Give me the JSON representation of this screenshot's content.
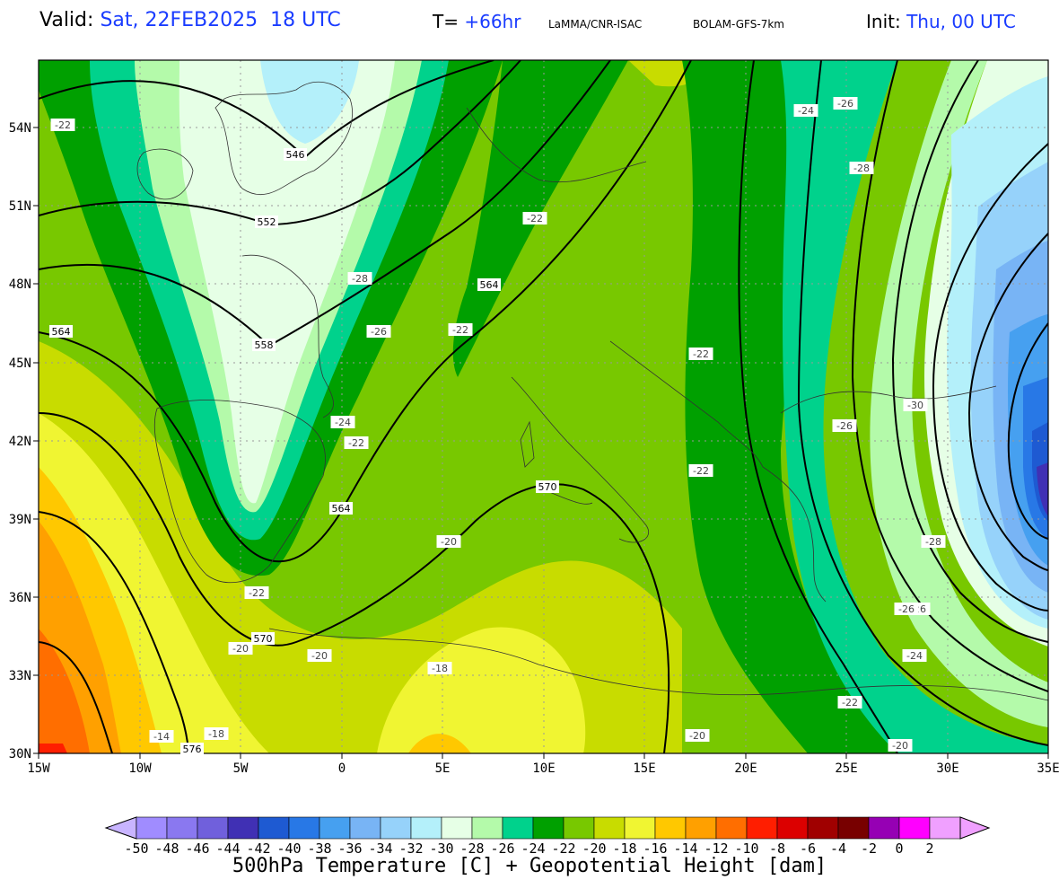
{
  "header": {
    "valid_label": "Valid:",
    "valid_value": "Sat, 22FEB2025  18 UTC",
    "t_label": "T=",
    "t_value": "+66hr",
    "source": "LaMMA/CNR-ISAC",
    "model": "BOLAM-GFS-7km",
    "init_label": "Init:",
    "init_value": "Thu, 00 UTC"
  },
  "map": {
    "lon_ticks": [
      "15W",
      "10W",
      "5W",
      "0",
      "5E",
      "10E",
      "15E",
      "20E",
      "25E",
      "30E",
      "35E"
    ],
    "lat_ticks": [
      "30N",
      "33N",
      "36N",
      "39N",
      "42N",
      "45N",
      "48N",
      "51N",
      "54N"
    ]
  },
  "colorbar": {
    "title": "500hPa Temperature [C] + Geopotential Height [dam]",
    "labels": [
      "-50",
      "-48",
      "-46",
      "-44",
      "-42",
      "-40",
      "-38",
      "-36",
      "-34",
      "-32",
      "-30",
      "-28",
      "-26",
      "-24",
      "-22",
      "-20",
      "-18",
      "-16",
      "-14",
      "-12",
      "-10",
      "-8",
      "-6",
      "-4",
      "-2",
      "0",
      "2"
    ],
    "colors": [
      "#a08cff",
      "#8a78f0",
      "#7060dc",
      "#4030b4",
      "#1e5ad2",
      "#2878e6",
      "#46a0f0",
      "#78b4f5",
      "#96d2fa",
      "#b4f0fa",
      "#e6ffe6",
      "#b4faaa",
      "#00d28c",
      "#00a000",
      "#78c800",
      "#c8dc00",
      "#f0f532",
      "#ffc800",
      "#ffa000",
      "#ff6e00",
      "#ff1e00",
      "#dc0000",
      "#a00000",
      "#780000",
      "#9600b4",
      "#ff00ff",
      "#f0a0ff"
    ]
  },
  "contour_labels": {
    "temperature": [
      "-22",
      "-22",
      "-28",
      "-26",
      "-22",
      "-22",
      "-24",
      "-22",
      "-22",
      "-20",
      "-22",
      "-20",
      "-20",
      "-18",
      "-14",
      "-18",
      "-20",
      "-22",
      "-24",
      "-26",
      "-26",
      "-28",
      "-24",
      "-26",
      "-30",
      "-28",
      "-26",
      "-24",
      "-22",
      "-20"
    ],
    "height": [
      "546",
      "552",
      "558",
      "564",
      "564",
      "564",
      "570",
      "570",
      "576"
    ]
  },
  "colors": {
    "title_blue": "#1a3cff"
  }
}
